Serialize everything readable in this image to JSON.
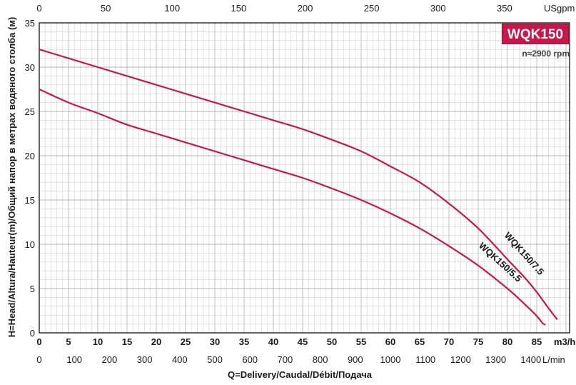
{
  "chart_data": {
    "type": "line",
    "title": "",
    "model_badge": "WQK150",
    "speed_label": "n≈2900 rpm",
    "ylabel": "H=Head/Altura/Hauteur(m)/Общий напор в метрах водяного столба (м)",
    "xlabel": "Q=Delivery/Caudal/Débit/Подача",
    "ylim": [
      0,
      35
    ],
    "y_ticks": [
      "0",
      "5",
      "10",
      "15",
      "20",
      "25",
      "30",
      "35"
    ],
    "x_primary": {
      "unit": "m3/h",
      "range": [
        0,
        90
      ],
      "ticks": [
        "0",
        "5",
        "10",
        "15",
        "20",
        "25",
        "30",
        "35",
        "40",
        "45",
        "50",
        "55",
        "60",
        "65",
        "70",
        "75",
        "80",
        "85"
      ]
    },
    "x_lpm": {
      "unit": "L/min",
      "ticks": [
        "0",
        "100",
        "200",
        "300",
        "400",
        "500",
        "600",
        "700",
        "800",
        "900",
        "1000",
        "1100",
        "1200",
        "1300",
        "1400"
      ]
    },
    "x_usgpm": {
      "unit": "USgpm",
      "ticks": [
        "0",
        "50",
        "100",
        "150",
        "200",
        "250",
        "300",
        "350"
      ]
    },
    "grid": true,
    "series": [
      {
        "name": "WQK150/7.5",
        "color": "#c8174a",
        "x": [
          0,
          5,
          10,
          15,
          20,
          25,
          30,
          35,
          40,
          45,
          50,
          55,
          60,
          65,
          70,
          75,
          80,
          83,
          85,
          87,
          88.5
        ],
        "y": [
          32,
          31,
          30,
          29,
          28,
          27,
          26,
          25,
          24,
          23,
          21.8,
          20.5,
          18.8,
          17,
          14.6,
          11.8,
          8.3,
          6.2,
          4.6,
          2.8,
          1.5
        ]
      },
      {
        "name": "WQK150/5.5",
        "color": "#c8174a",
        "x": [
          0,
          5,
          10,
          15,
          20,
          25,
          30,
          35,
          40,
          45,
          50,
          55,
          60,
          65,
          70,
          75,
          80,
          83,
          85,
          86,
          86.5
        ],
        "y": [
          27.5,
          26,
          24.8,
          23.5,
          22.5,
          21.5,
          20.5,
          19.5,
          18.5,
          17.5,
          16.3,
          15,
          13.5,
          11.8,
          9.8,
          7.6,
          5,
          3.2,
          1.9,
          1.1,
          0.9
        ]
      }
    ]
  }
}
